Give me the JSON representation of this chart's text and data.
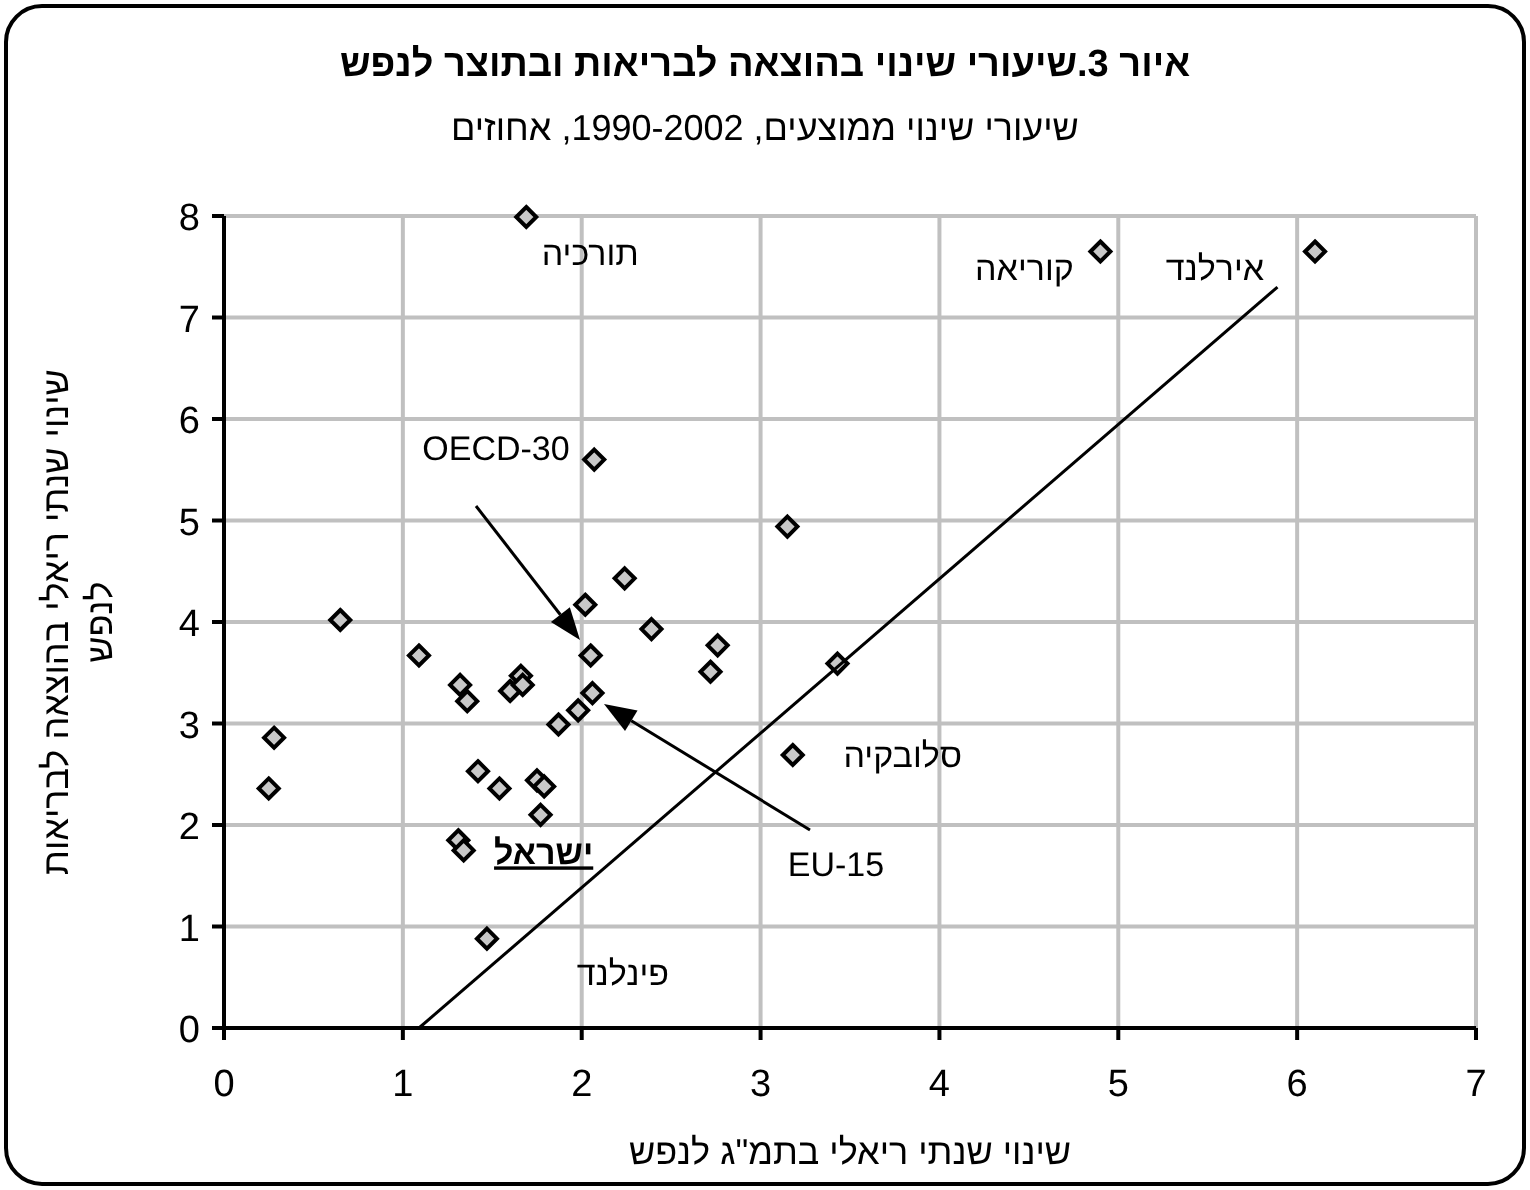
{
  "chart_data": {
    "type": "scatter",
    "title": "איור 3.שיעורי שינוי בהוצאה לבריאות ובתוצר לנפש",
    "subtitle": "שיעורי שינוי ממוצעים, 1990-2002, אחוזים",
    "xlabel": "שינוי שנתי ריאלי בתמ\"ג לנפש",
    "ylabel": "שינוי שנתי ריאלי בהוצאה לבריאות לנפש",
    "xlim": [
      0,
      7
    ],
    "ylim": [
      0,
      8
    ],
    "xticks": [
      0,
      1,
      2,
      3,
      4,
      5,
      6,
      7
    ],
    "yticks": [
      0,
      1,
      2,
      3,
      4,
      5,
      6,
      7,
      8
    ],
    "grid": true,
    "marker": "diamond",
    "series": [
      {
        "color": "#000000",
        "x": [
          1.69,
          2.07,
          0.65,
          1.09,
          1.32,
          1.36,
          1.6,
          1.66,
          1.67,
          2.02,
          2.05,
          2.06,
          1.98,
          1.87,
          2.24,
          2.39,
          0.28,
          0.25,
          1.42,
          1.54,
          1.75,
          1.79,
          1.77,
          1.31,
          1.34,
          1.47,
          4.9,
          6.1,
          3.15,
          2.76,
          2.72,
          3.43,
          3.18
        ],
        "values": [
          7.99,
          5.6,
          4.02,
          3.67,
          3.38,
          3.22,
          3.32,
          3.47,
          3.38,
          4.17,
          3.67,
          3.3,
          3.13,
          2.99,
          4.43,
          3.93,
          2.86,
          2.36,
          2.53,
          2.36,
          2.44,
          2.38,
          2.1,
          1.85,
          1.75,
          0.88,
          7.65,
          7.65,
          4.94,
          3.77,
          3.51,
          3.59,
          2.69
        ]
      },
      {
        "type": "line",
        "color": "#000000",
        "marker": "none",
        "x": [
          1.09,
          5.89
        ],
        "values": [
          0,
          7.3
        ]
      }
    ],
    "annotations": [
      {
        "text": "תורכיה",
        "x": 1.69,
        "y": 7.99
      },
      {
        "text": "קוריאה",
        "x": 4.9,
        "y": 7.65
      },
      {
        "text": "אירלנד",
        "x": 6.1,
        "y": 7.65
      },
      {
        "text": "סלובקיה",
        "x": 3.18,
        "y": 2.69
      },
      {
        "text": "ישראל",
        "x": 1.34,
        "y": 1.75
      },
      {
        "text": "פינלנד",
        "x": 1.47,
        "y": 0.88
      },
      "OECD-30",
      "EU-15"
    ]
  }
}
